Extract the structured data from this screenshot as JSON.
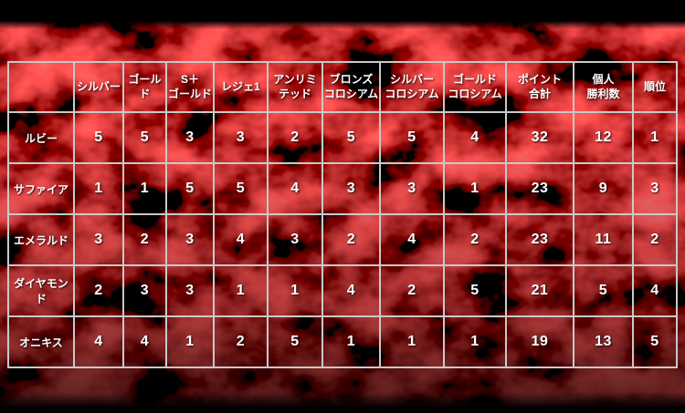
{
  "chart_data": {
    "type": "table",
    "columns": [
      "",
      "シルバー",
      "ゴールド",
      "S＋\nゴールド",
      "レジェ1",
      "アンリミ\nテッド",
      "ブロンズ\nコロシアム",
      "シルバー\nコロシアム",
      "ゴールド\nコロシアム",
      "ポイント\n合計",
      "個人\n勝利数",
      "順位"
    ],
    "rows": [
      {
        "label": "ルビー",
        "values": [
          5,
          5,
          3,
          3,
          2,
          5,
          5,
          4,
          32,
          12,
          1
        ]
      },
      {
        "label": "サファイア",
        "values": [
          1,
          1,
          5,
          5,
          4,
          3,
          3,
          1,
          23,
          9,
          3
        ]
      },
      {
        "label": "エメラルド",
        "values": [
          3,
          2,
          3,
          4,
          3,
          2,
          4,
          2,
          23,
          11,
          2
        ]
      },
      {
        "label": "ダイヤモンド",
        "values": [
          2,
          3,
          3,
          1,
          1,
          4,
          2,
          5,
          21,
          5,
          4
        ]
      },
      {
        "label": "オニキス",
        "values": [
          4,
          4,
          1,
          2,
          5,
          1,
          1,
          1,
          19,
          13,
          5
        ]
      }
    ],
    "layout_hints": {
      "grid": true,
      "header_row": true,
      "header_column": true
    }
  },
  "colors": {
    "background": "#000000",
    "camo_red": "#aa1010",
    "grid_line": "#c9c9c9",
    "text": "#ffffff"
  }
}
